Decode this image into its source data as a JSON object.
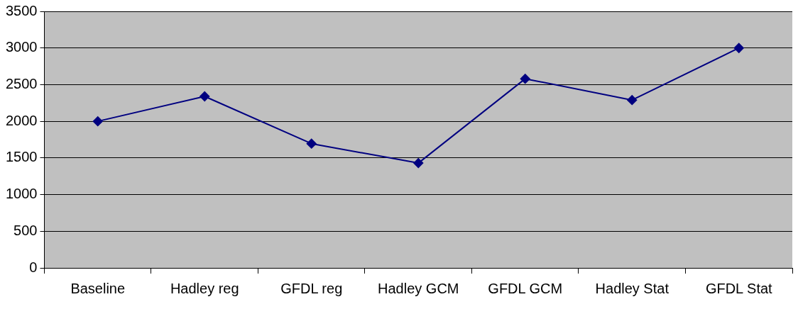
{
  "chart_data": {
    "type": "line",
    "categories": [
      "Baseline",
      "Hadley reg",
      "GFDL reg",
      "Hadley GCM",
      "GFDL GCM",
      "Hadley Stat",
      "GFDL Stat"
    ],
    "series": [
      {
        "color": "#000080",
        "values": [
          2000,
          2340,
          1695,
          1430,
          2580,
          2290,
          3000
        ]
      }
    ],
    "ylim": [
      0,
      3500
    ],
    "yticks": [
      0,
      500,
      1000,
      1500,
      2000,
      2500,
      3000,
      3500
    ],
    "grid": "y",
    "legend": false,
    "marker": "diamond",
    "line_style": "solid"
  }
}
